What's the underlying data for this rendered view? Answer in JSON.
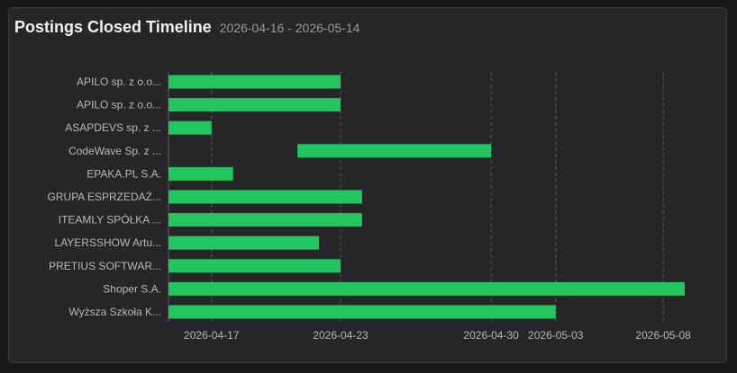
{
  "header": {
    "title": "Postings Closed Timeline",
    "subtitle": "2026-04-16 - 2026-05-14"
  },
  "colors": {
    "bar": "#22c55e",
    "grid": "#5a5a5c",
    "background": "#262628"
  },
  "chart_data": {
    "type": "bar",
    "orientation": "horizontal",
    "title": "Postings Closed Timeline",
    "subtitle": "2026-04-16 - 2026-05-14",
    "x_axis_type": "date",
    "xlim": [
      "2026-04-15",
      "2026-05-09"
    ],
    "x_ticks": [
      "2026-04-17",
      "2026-04-23",
      "2026-04-30",
      "2026-05-03",
      "2026-05-08"
    ],
    "grid": "vertical dashed",
    "categories": [
      "APILO sp. z o.o...",
      "APILO sp. z o.o...",
      "ASAPDEVS sp. z ...",
      "CodeWave Sp. z ...",
      "EPAKA.PL S.A.",
      "GRUPA ESPRZEDAŻ...",
      "ITEAMLY SPÓŁKA ...",
      "LAYERSSHOW Artu...",
      "PRETIUS SOFTWAR...",
      "Shoper S.A.",
      "Wyższa Szkoła K..."
    ],
    "series": [
      {
        "ranges": [
          [
            "2026-04-15",
            "2026-04-23"
          ],
          [
            "2026-04-15",
            "2026-04-23"
          ],
          [
            "2026-04-15",
            "2026-04-17"
          ],
          [
            "2026-04-21",
            "2026-04-30"
          ],
          [
            "2026-04-15",
            "2026-04-18"
          ],
          [
            "2026-04-15",
            "2026-04-24"
          ],
          [
            "2026-04-15",
            "2026-04-24"
          ],
          [
            "2026-04-15",
            "2026-04-22"
          ],
          [
            "2026-04-15",
            "2026-04-23"
          ],
          [
            "2026-04-15",
            "2026-05-09"
          ],
          [
            "2026-04-15",
            "2026-05-03"
          ]
        ]
      }
    ]
  }
}
